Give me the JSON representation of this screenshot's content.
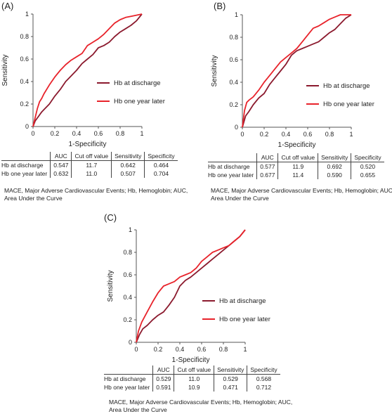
{
  "chart_data": [
    {
      "type": "line",
      "panel_label": "(A)",
      "xlabel": "1-Specificity",
      "ylabel": "Sensitivity",
      "xlim": [
        0,
        1
      ],
      "ylim": [
        0,
        1
      ],
      "xticks": [
        "0",
        "0.2",
        "0.4",
        "0.6",
        "0.8",
        "1"
      ],
      "yticks": [
        "0",
        "0.2",
        "0.4",
        "0.6",
        "0.8",
        "1"
      ],
      "legend": "right",
      "series": [
        {
          "name": "Hb at discharge",
          "color": "#8b1a2e",
          "x": [
            0,
            0.02,
            0.05,
            0.08,
            0.1,
            0.15,
            0.2,
            0.25,
            0.3,
            0.35,
            0.4,
            0.45,
            0.5,
            0.55,
            0.6,
            0.65,
            0.7,
            0.75,
            0.8,
            0.85,
            0.9,
            0.95,
            1.0
          ],
          "y": [
            0,
            0.05,
            0.09,
            0.13,
            0.15,
            0.2,
            0.27,
            0.33,
            0.4,
            0.45,
            0.5,
            0.56,
            0.6,
            0.64,
            0.7,
            0.72,
            0.75,
            0.8,
            0.84,
            0.87,
            0.9,
            0.94,
            1.0
          ]
        },
        {
          "name": "Hb one year later",
          "color": "#e8232b",
          "x": [
            0,
            0.02,
            0.04,
            0.06,
            0.08,
            0.1,
            0.15,
            0.2,
            0.25,
            0.3,
            0.35,
            0.4,
            0.45,
            0.5,
            0.55,
            0.6,
            0.65,
            0.7,
            0.75,
            0.8,
            0.85,
            0.9,
            0.95,
            1.0
          ],
          "y": [
            0,
            0.08,
            0.16,
            0.22,
            0.25,
            0.29,
            0.37,
            0.44,
            0.5,
            0.55,
            0.59,
            0.62,
            0.65,
            0.72,
            0.75,
            0.78,
            0.82,
            0.87,
            0.92,
            0.95,
            0.97,
            0.98,
            0.99,
            1.0
          ]
        }
      ]
    },
    {
      "type": "line",
      "panel_label": "(B)",
      "xlabel": "1-Specificity",
      "ylabel": "Sensitivity",
      "xlim": [
        0,
        1
      ],
      "ylim": [
        0,
        1
      ],
      "xticks": [
        "0",
        "0.2",
        "0.4",
        "0.6",
        "0.8",
        "1"
      ],
      "yticks": [
        "0",
        "0.2",
        "0.4",
        "0.6",
        "0.8",
        "1"
      ],
      "legend": "right",
      "series": [
        {
          "name": "Hb at discharge",
          "color": "#8b1a2e",
          "x": [
            0,
            0.03,
            0.06,
            0.1,
            0.15,
            0.2,
            0.25,
            0.3,
            0.35,
            0.4,
            0.45,
            0.5,
            0.55,
            0.6,
            0.65,
            0.7,
            0.75,
            0.8,
            0.85,
            0.9,
            0.95,
            1.0
          ],
          "y": [
            0,
            0.1,
            0.14,
            0.2,
            0.26,
            0.3,
            0.38,
            0.44,
            0.5,
            0.56,
            0.64,
            0.68,
            0.7,
            0.72,
            0.74,
            0.76,
            0.8,
            0.84,
            0.87,
            0.92,
            0.97,
            1.0
          ]
        },
        {
          "name": "Hb one year later",
          "color": "#e8232b",
          "x": [
            0,
            0.02,
            0.04,
            0.06,
            0.1,
            0.15,
            0.2,
            0.25,
            0.3,
            0.35,
            0.4,
            0.45,
            0.5,
            0.55,
            0.6,
            0.65,
            0.7,
            0.75,
            0.8,
            0.85,
            0.9,
            0.95,
            1.0
          ],
          "y": [
            0,
            0.15,
            0.22,
            0.24,
            0.27,
            0.33,
            0.4,
            0.46,
            0.52,
            0.58,
            0.62,
            0.66,
            0.7,
            0.76,
            0.82,
            0.88,
            0.9,
            0.93,
            0.96,
            0.98,
            1.0,
            1.0,
            1.0
          ]
        }
      ]
    },
    {
      "type": "line",
      "panel_label": "(C)",
      "xlabel": "1-Specificity",
      "ylabel": "Sensitivity",
      "xlim": [
        0,
        1
      ],
      "ylim": [
        0,
        1
      ],
      "xticks": [
        "0",
        "0.2",
        "0.4",
        "0.6",
        "0.8",
        "1"
      ],
      "yticks": [
        "0",
        "0.2",
        "0.4",
        "0.6",
        "0.8",
        "1"
      ],
      "legend": "right",
      "series": [
        {
          "name": "Hb at discharge",
          "color": "#8b1a2e",
          "x": [
            0,
            0.03,
            0.06,
            0.1,
            0.15,
            0.2,
            0.25,
            0.3,
            0.35,
            0.4,
            0.45,
            0.5,
            0.55,
            0.6,
            0.65,
            0.7,
            0.75,
            0.8,
            0.85,
            0.9,
            0.95,
            1.0
          ],
          "y": [
            0,
            0.07,
            0.12,
            0.15,
            0.2,
            0.24,
            0.27,
            0.33,
            0.4,
            0.5,
            0.55,
            0.58,
            0.62,
            0.66,
            0.7,
            0.74,
            0.78,
            0.82,
            0.86,
            0.9,
            0.94,
            1.0
          ]
        },
        {
          "name": "Hb one year later",
          "color": "#e8232b",
          "x": [
            0,
            0.02,
            0.05,
            0.1,
            0.15,
            0.2,
            0.25,
            0.3,
            0.35,
            0.4,
            0.45,
            0.5,
            0.55,
            0.6,
            0.65,
            0.7,
            0.75,
            0.8,
            0.85,
            0.9,
            0.95,
            1.0
          ],
          "y": [
            0,
            0.1,
            0.18,
            0.27,
            0.36,
            0.44,
            0.5,
            0.52,
            0.54,
            0.58,
            0.6,
            0.62,
            0.66,
            0.72,
            0.76,
            0.8,
            0.82,
            0.84,
            0.86,
            0.9,
            0.94,
            1.0
          ]
        }
      ]
    }
  ],
  "tables": [
    {
      "headers": [
        "AUC",
        "Cut off value",
        "Sensitivity",
        "Specificity"
      ],
      "rows": [
        {
          "label": "Hb at discharge",
          "values": [
            "0.547",
            "11.7",
            "0.642",
            "0.464"
          ]
        },
        {
          "label": "Hb one year later",
          "values": [
            "0.632",
            "11.0",
            "0.507",
            "0.704"
          ]
        }
      ],
      "footnote": "MACE, Major Adverse Cardiovascular Events; Hb, Hemoglobin; AUC, Area Under the Curve"
    },
    {
      "headers": [
        "AUC",
        "Cut off value",
        "Sensitivity",
        "Specificity"
      ],
      "rows": [
        {
          "label": "Hb at discharge",
          "values": [
            "0.577",
            "11.9",
            "0.692",
            "0.520"
          ]
        },
        {
          "label": "Hb one year later",
          "values": [
            "0.677",
            "11.4",
            "0.590",
            "0.655"
          ]
        }
      ],
      "footnote": "MACE, Major Adverse Cardiovascular Events; Hb, Hemoglobin; AUC, Area Under the Curve"
    },
    {
      "headers": [
        "AUC",
        "Cut off value",
        "Sensitivity",
        "Specificity"
      ],
      "rows": [
        {
          "label": "Hb at discharge",
          "values": [
            "0.529",
            "11.0",
            "0.529",
            "0.568"
          ]
        },
        {
          "label": "Hb one year later",
          "values": [
            "0.591",
            "10.9",
            "0.471",
            "0.712"
          ]
        }
      ],
      "footnote": "MACE, Major Adverse Cardiovascular Events; Hb, Hemoglobin; AUC, Area Under the Curve"
    }
  ]
}
